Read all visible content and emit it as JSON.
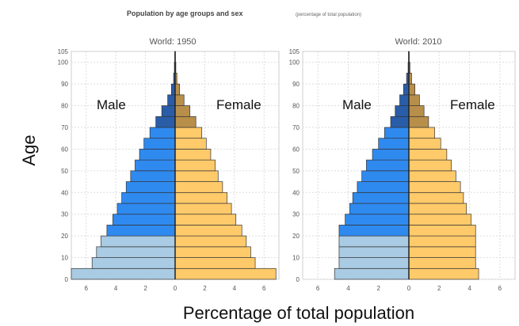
{
  "chart_data": [
    {
      "type": "bar",
      "title": "Population by age groups and sex",
      "title_note": "(percentage of total population)",
      "subtitle": "World: 1950",
      "ylabel": "Age",
      "xlabel": "Percentage of total population",
      "left_label": "Male",
      "right_label": "Female",
      "ylim": [
        0,
        105
      ],
      "xlim": [
        -7,
        7
      ],
      "y_ticks": [
        "0",
        "10",
        "20",
        "30",
        "40",
        "50",
        "60",
        "70",
        "80",
        "90",
        "100",
        "105"
      ],
      "x_ticks": [
        "6",
        "4",
        "2",
        "0",
        "2",
        "4",
        "6"
      ],
      "grid": true,
      "age_groups": [
        0,
        5,
        10,
        15,
        20,
        25,
        30,
        35,
        40,
        45,
        50,
        55,
        60,
        65,
        70,
        75,
        80,
        85,
        90,
        95,
        100
      ],
      "series": [
        {
          "name": "Male",
          "values": [
            7.0,
            5.6,
            5.3,
            5.0,
            4.6,
            4.2,
            3.9,
            3.6,
            3.3,
            3.0,
            2.7,
            2.4,
            2.1,
            1.7,
            1.3,
            0.9,
            0.5,
            0.25,
            0.1,
            0.05,
            0.02
          ]
        },
        {
          "name": "Female",
          "values": [
            6.8,
            5.4,
            5.1,
            4.8,
            4.5,
            4.1,
            3.8,
            3.5,
            3.2,
            2.9,
            2.7,
            2.4,
            2.1,
            1.8,
            1.4,
            1.0,
            0.6,
            0.3,
            0.12,
            0.05,
            0.02
          ]
        }
      ],
      "colors": {
        "male_young": "#a9cbe4",
        "male_adult": "#2f8af0",
        "male_old": "#2a5da8",
        "female_adult": "#ffca6a",
        "female_old": "#b88f4a"
      }
    },
    {
      "type": "bar",
      "subtitle": "World: 2010",
      "left_label": "Male",
      "right_label": "Female",
      "ylim": [
        0,
        105
      ],
      "xlim": [
        -7,
        7
      ],
      "y_ticks": [
        "0",
        "10",
        "20",
        "30",
        "40",
        "50",
        "60",
        "70",
        "80",
        "90",
        "100",
        "105"
      ],
      "x_ticks": [
        "6",
        "4",
        "2",
        "0",
        "2",
        "4",
        "6"
      ],
      "grid": true,
      "age_groups": [
        0,
        5,
        10,
        15,
        20,
        25,
        30,
        35,
        40,
        45,
        50,
        55,
        60,
        65,
        70,
        75,
        80,
        85,
        90,
        95,
        100
      ],
      "series": [
        {
          "name": "Male",
          "values": [
            4.9,
            4.6,
            4.6,
            4.6,
            4.6,
            4.2,
            3.9,
            3.7,
            3.4,
            3.1,
            2.8,
            2.4,
            2.0,
            1.6,
            1.2,
            0.9,
            0.6,
            0.35,
            0.15,
            0.05,
            0.02
          ]
        },
        {
          "name": "Female",
          "values": [
            4.6,
            4.4,
            4.4,
            4.4,
            4.4,
            4.1,
            3.8,
            3.6,
            3.4,
            3.1,
            2.8,
            2.5,
            2.1,
            1.7,
            1.3,
            1.0,
            0.7,
            0.4,
            0.18,
            0.07,
            0.02
          ]
        }
      ],
      "colors": {
        "male_young": "#a9cbe4",
        "male_adult": "#2f8af0",
        "male_old": "#2a5da8",
        "female_adult": "#ffca6a",
        "female_old": "#b88f4a"
      }
    }
  ]
}
